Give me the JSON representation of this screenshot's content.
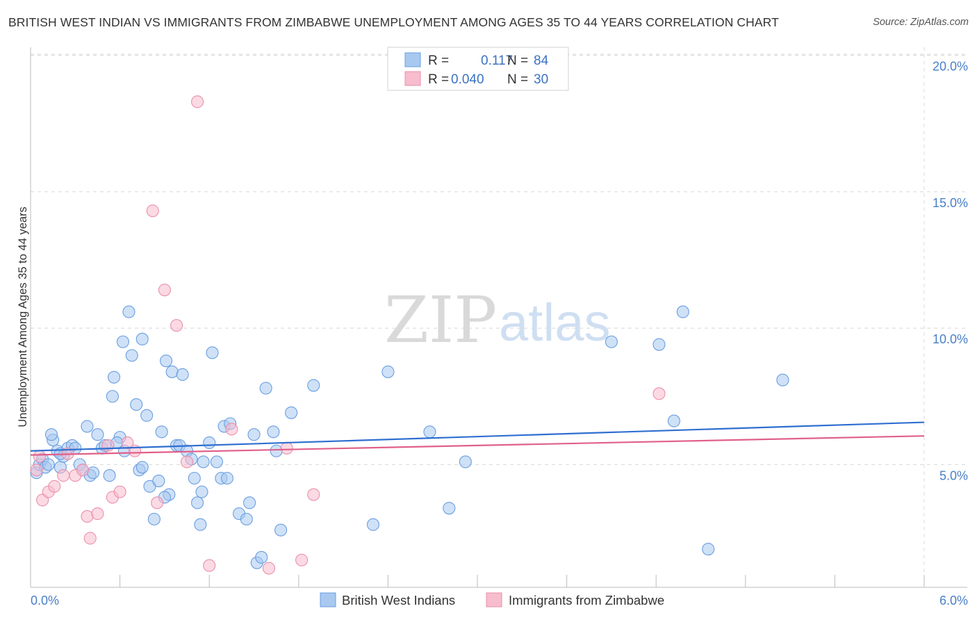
{
  "title": "BRITISH WEST INDIAN VS IMMIGRANTS FROM ZIMBABWE UNEMPLOYMENT AMONG AGES 35 TO 44 YEARS CORRELATION CHART",
  "source": "Source: ZipAtlas.com",
  "watermark": {
    "zip": "ZIP",
    "atlas": "atlas"
  },
  "legend": {
    "series1": {
      "r_label": "R =",
      "r_value": "0.117",
      "n_label": "N =",
      "n_value": "84"
    },
    "series2": {
      "r_label": "R =",
      "r_value": "0.040",
      "n_label": "N =",
      "n_value": "30"
    }
  },
  "colors": {
    "blue_fill": "#a8c8f0",
    "blue_stroke": "#6a9ee0",
    "blue_line": "#2f6fd0",
    "pink_fill": "#f7bccd",
    "pink_stroke": "#ea8fab",
    "pink_line": "#e0608a",
    "tick_text": "#4a7fc9",
    "grid": "#d8d8d8"
  },
  "chart_data": {
    "type": "scatter",
    "title": "BRITISH WEST INDIAN VS IMMIGRANTS FROM ZIMBABWE UNEMPLOYMENT AMONG AGES 35 TO 44 YEARS CORRELATION CHART",
    "xlabel": "",
    "ylabel": "Unemployment Among Ages 35 to 44 years",
    "xlim": [
      0,
      6
    ],
    "ylim": [
      0.5,
      20.5
    ],
    "x_tick_labels": [
      "0.0%",
      "6.0%"
    ],
    "y_ticks": [
      5,
      10,
      15,
      20
    ],
    "y_tick_labels": [
      "5.0%",
      "10.0%",
      "15.0%",
      "20.0%"
    ],
    "series": [
      {
        "name": "British West Indians",
        "color": "#a8c8f0",
        "trend": {
          "x": [
            0,
            6
          ],
          "y": [
            5.5,
            6.55
          ]
        },
        "points": [
          [
            0.04,
            4.7
          ],
          [
            0.06,
            5.0
          ],
          [
            0.08,
            5.2
          ],
          [
            0.1,
            4.9
          ],
          [
            0.12,
            5.0
          ],
          [
            0.15,
            5.9
          ],
          [
            0.18,
            5.5
          ],
          [
            0.2,
            4.9
          ],
          [
            0.22,
            5.3
          ],
          [
            0.25,
            5.6
          ],
          [
            0.28,
            5.7
          ],
          [
            0.3,
            5.6
          ],
          [
            0.33,
            5.0
          ],
          [
            0.35,
            4.8
          ],
          [
            0.38,
            6.4
          ],
          [
            0.4,
            4.6
          ],
          [
            0.42,
            4.7
          ],
          [
            0.45,
            6.1
          ],
          [
            0.48,
            5.6
          ],
          [
            0.5,
            5.7
          ],
          [
            0.53,
            4.6
          ],
          [
            0.55,
            7.5
          ],
          [
            0.56,
            8.2
          ],
          [
            0.6,
            6.0
          ],
          [
            0.62,
            9.5
          ],
          [
            0.63,
            5.5
          ],
          [
            0.66,
            10.6
          ],
          [
            0.68,
            9.0
          ],
          [
            0.71,
            7.2
          ],
          [
            0.73,
            4.8
          ],
          [
            0.75,
            9.6
          ],
          [
            0.78,
            6.8
          ],
          [
            0.8,
            4.2
          ],
          [
            0.83,
            3.0
          ],
          [
            0.86,
            4.4
          ],
          [
            0.88,
            6.2
          ],
          [
            0.91,
            8.8
          ],
          [
            0.93,
            3.9
          ],
          [
            0.95,
            8.4
          ],
          [
            0.98,
            5.7
          ],
          [
            1.0,
            5.7
          ],
          [
            1.02,
            8.3
          ],
          [
            1.05,
            5.5
          ],
          [
            1.08,
            5.2
          ],
          [
            1.1,
            4.5
          ],
          [
            1.12,
            3.6
          ],
          [
            1.14,
            2.8
          ],
          [
            1.16,
            5.1
          ],
          [
            1.2,
            5.8
          ],
          [
            1.22,
            9.1
          ],
          [
            1.25,
            5.1
          ],
          [
            1.28,
            4.5
          ],
          [
            1.3,
            6.4
          ],
          [
            1.32,
            4.5
          ],
          [
            1.34,
            6.5
          ],
          [
            1.4,
            3.2
          ],
          [
            1.45,
            3.0
          ],
          [
            1.47,
            3.6
          ],
          [
            1.5,
            6.1
          ],
          [
            1.52,
            1.4
          ],
          [
            1.55,
            1.6
          ],
          [
            1.58,
            7.8
          ],
          [
            1.63,
            6.2
          ],
          [
            1.65,
            5.5
          ],
          [
            1.68,
            2.6
          ],
          [
            1.75,
            6.9
          ],
          [
            1.9,
            7.9
          ],
          [
            2.3,
            2.8
          ],
          [
            2.4,
            8.4
          ],
          [
            2.68,
            6.2
          ],
          [
            2.81,
            3.4
          ],
          [
            2.92,
            5.1
          ],
          [
            3.9,
            9.5
          ],
          [
            4.22,
            9.4
          ],
          [
            4.32,
            6.6
          ],
          [
            4.38,
            10.6
          ],
          [
            4.55,
            1.9
          ],
          [
            5.05,
            8.1
          ],
          [
            0.2,
            5.4
          ],
          [
            0.14,
            6.1
          ],
          [
            0.58,
            5.8
          ],
          [
            0.75,
            4.9
          ],
          [
            0.9,
            3.8
          ],
          [
            1.15,
            4.0
          ]
        ]
      },
      {
        "name": "Immigrants from Zimbabwe",
        "color": "#f7bccd",
        "trend": {
          "x": [
            0,
            6
          ],
          "y": [
            5.35,
            6.05
          ]
        },
        "points": [
          [
            0.04,
            4.8
          ],
          [
            0.06,
            5.3
          ],
          [
            0.08,
            3.7
          ],
          [
            0.12,
            4.0
          ],
          [
            0.16,
            4.2
          ],
          [
            0.22,
            4.6
          ],
          [
            0.25,
            5.4
          ],
          [
            0.3,
            4.6
          ],
          [
            0.35,
            4.8
          ],
          [
            0.38,
            3.1
          ],
          [
            0.4,
            2.3
          ],
          [
            0.45,
            3.2
          ],
          [
            0.52,
            5.7
          ],
          [
            0.55,
            3.8
          ],
          [
            0.6,
            4.0
          ],
          [
            0.65,
            5.8
          ],
          [
            0.7,
            5.5
          ],
          [
            0.82,
            14.3
          ],
          [
            0.85,
            3.6
          ],
          [
            0.9,
            11.4
          ],
          [
            0.98,
            10.1
          ],
          [
            1.05,
            5.1
          ],
          [
            1.12,
            18.3
          ],
          [
            1.2,
            1.3
          ],
          [
            1.35,
            6.3
          ],
          [
            1.6,
            1.2
          ],
          [
            1.72,
            5.6
          ],
          [
            1.82,
            1.5
          ],
          [
            1.9,
            3.9
          ],
          [
            4.22,
            7.6
          ]
        ]
      }
    ],
    "legend_entries": [
      "British West Indians",
      "Immigrants from Zimbabwe"
    ],
    "legend_position": "top-center"
  }
}
